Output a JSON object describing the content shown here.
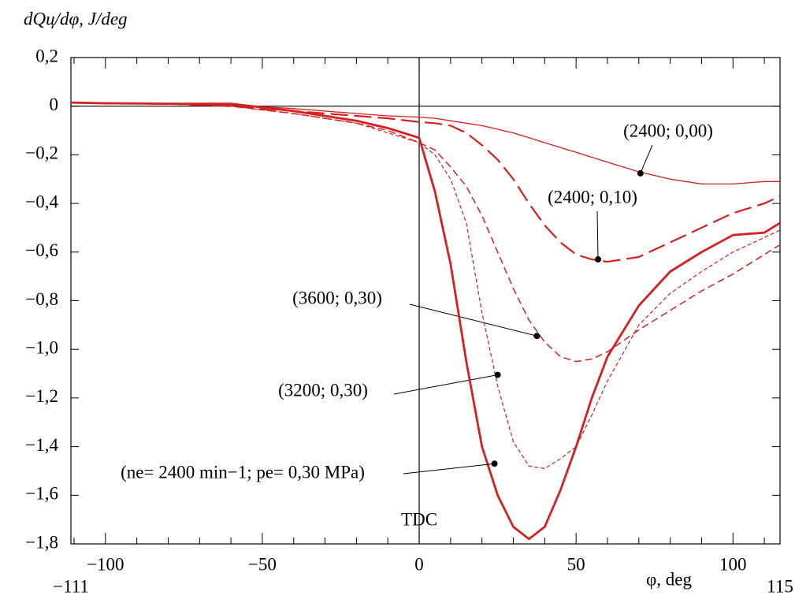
{
  "chart_data": {
    "type": "line",
    "y_label": "dQц/dφ, J/deg",
    "x_label": "φ, deg",
    "xlim": [
      -111,
      115
    ],
    "ylim": [
      -1.8,
      0.2
    ],
    "xticks": [
      {
        "value": -111,
        "label": "−111"
      },
      {
        "value": -100,
        "label": "−100"
      },
      {
        "value": -50,
        "label": "−50"
      },
      0,
      50,
      100,
      115
    ],
    "xminorticks": [
      -110,
      -90,
      -80,
      -70,
      -60,
      -40,
      -30,
      -20,
      -10,
      10,
      20,
      30,
      40,
      60,
      70,
      80,
      90,
      110
    ],
    "yticks": [
      {
        "value": 0.2,
        "label": "0,2"
      },
      0,
      {
        "value": -0.2,
        "label": "−0,2"
      },
      {
        "value": -0.4,
        "label": "−0,4"
      },
      {
        "value": -0.6,
        "label": "−0,6"
      },
      {
        "value": -0.8,
        "label": "−0,8"
      },
      {
        "value": -1.0,
        "label": "−1,0"
      },
      {
        "value": -1.2,
        "label": "−1,2"
      },
      {
        "value": -1.4,
        "label": "−1,4"
      },
      {
        "value": -1.6,
        "label": "−1,6"
      },
      {
        "value": -1.8,
        "label": "−1,8"
      }
    ],
    "hline": 0,
    "vline": {
      "x": 0,
      "label": "TDC"
    },
    "x": [
      -111,
      -100,
      -80,
      -60,
      -40,
      -20,
      -10,
      0,
      5,
      10,
      15,
      20,
      25,
      30,
      35,
      40,
      45,
      50,
      55,
      60,
      70,
      80,
      90,
      100,
      110,
      115
    ],
    "series": [
      {
        "name": "(2400; 0,00)",
        "color": "#d42020",
        "style": "thin",
        "point": {
          "x": 70.5,
          "y": -0.276
        },
        "values": [
          0.015,
          0.012,
          0.01,
          0.005,
          -0.01,
          -0.03,
          -0.04,
          -0.045,
          -0.05,
          -0.06,
          -0.07,
          -0.08,
          -0.095,
          -0.11,
          -0.13,
          -0.15,
          -0.17,
          -0.19,
          -0.21,
          -0.23,
          -0.27,
          -0.3,
          -0.32,
          -0.32,
          -0.31,
          -0.31
        ]
      },
      {
        "name": "(2400; 0,10)",
        "color": "#d42020",
        "style": "long-dash",
        "point": {
          "x": 57,
          "y": -0.63
        },
        "values": [
          0.015,
          0.012,
          0.01,
          0.0,
          -0.02,
          -0.04,
          -0.05,
          -0.065,
          -0.07,
          -0.08,
          -0.11,
          -0.16,
          -0.22,
          -0.3,
          -0.4,
          -0.49,
          -0.56,
          -0.61,
          -0.63,
          -0.64,
          -0.62,
          -0.56,
          -0.5,
          -0.44,
          -0.4,
          -0.37
        ]
      },
      {
        "name": "(3600; 0,30)",
        "color": "#d42020",
        "style": "dash",
        "point": {
          "x": 37.5,
          "y": -0.945
        },
        "values": [
          0.015,
          0.012,
          0.01,
          0.0,
          -0.03,
          -0.07,
          -0.1,
          -0.15,
          -0.18,
          -0.25,
          -0.33,
          -0.45,
          -0.6,
          -0.75,
          -0.88,
          -0.97,
          -1.03,
          -1.05,
          -1.04,
          -1.01,
          -0.92,
          -0.84,
          -0.76,
          -0.69,
          -0.61,
          -0.57
        ]
      },
      {
        "name": "(3200; 0,30)",
        "color": "#d42020",
        "style": "short-dash",
        "point": {
          "x": 25,
          "y": -1.105
        },
        "values": [
          0.015,
          0.012,
          0.01,
          0.0,
          -0.03,
          -0.07,
          -0.11,
          -0.15,
          -0.2,
          -0.3,
          -0.48,
          -0.85,
          -1.15,
          -1.38,
          -1.48,
          -1.49,
          -1.45,
          -1.4,
          -1.27,
          -1.13,
          -0.9,
          -0.77,
          -0.68,
          -0.6,
          -0.54,
          -0.51
        ]
      },
      {
        "name": "(ne= 2400 min−1; pe= 0,30 MPa)",
        "color": "#d42020",
        "style": "thick",
        "point": {
          "x": 24,
          "y": -1.47
        },
        "values": [
          0.015,
          0.012,
          0.01,
          0.01,
          -0.02,
          -0.06,
          -0.09,
          -0.13,
          -0.35,
          -0.65,
          -1.05,
          -1.4,
          -1.6,
          -1.73,
          -1.78,
          -1.73,
          -1.58,
          -1.4,
          -1.2,
          -1.03,
          -0.82,
          -0.68,
          -0.6,
          -0.53,
          -0.52,
          -0.48
        ]
      }
    ]
  }
}
